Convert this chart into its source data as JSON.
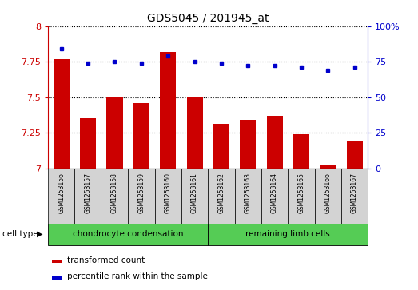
{
  "title": "GDS5045 / 201945_at",
  "samples": [
    "GSM1253156",
    "GSM1253157",
    "GSM1253158",
    "GSM1253159",
    "GSM1253160",
    "GSM1253161",
    "GSM1253162",
    "GSM1253163",
    "GSM1253164",
    "GSM1253165",
    "GSM1253166",
    "GSM1253167"
  ],
  "transformed_count": [
    7.77,
    7.35,
    7.5,
    7.46,
    7.82,
    7.5,
    7.31,
    7.34,
    7.37,
    7.24,
    7.02,
    7.19
  ],
  "percentile_rank": [
    84,
    74,
    75,
    74,
    79,
    75,
    74,
    72,
    72,
    71,
    69,
    71
  ],
  "ylim_left": [
    7.0,
    8.0
  ],
  "ylim_right": [
    0,
    100
  ],
  "yticks_left": [
    7.0,
    7.25,
    7.5,
    7.75,
    8.0
  ],
  "yticks_right": [
    0,
    25,
    50,
    75,
    100
  ],
  "ytick_labels_left": [
    "7",
    "7.25",
    "7.5",
    "7.75",
    "8"
  ],
  "ytick_labels_right": [
    "0",
    "25",
    "50",
    "75",
    "100%"
  ],
  "bar_color": "#cc0000",
  "dot_color": "#0000cc",
  "bar_width": 0.6,
  "group1_indices": [
    0,
    1,
    2,
    3,
    4,
    5
  ],
  "group2_indices": [
    6,
    7,
    8,
    9,
    10,
    11
  ],
  "group1_label": "chondrocyte condensation",
  "group2_label": "remaining limb cells",
  "cell_type_label": "cell type",
  "legend_bar_label": "transformed count",
  "legend_dot_label": "percentile rank within the sample",
  "xlabel_bg": "#d3d3d3",
  "group_bg": "#55cc55"
}
